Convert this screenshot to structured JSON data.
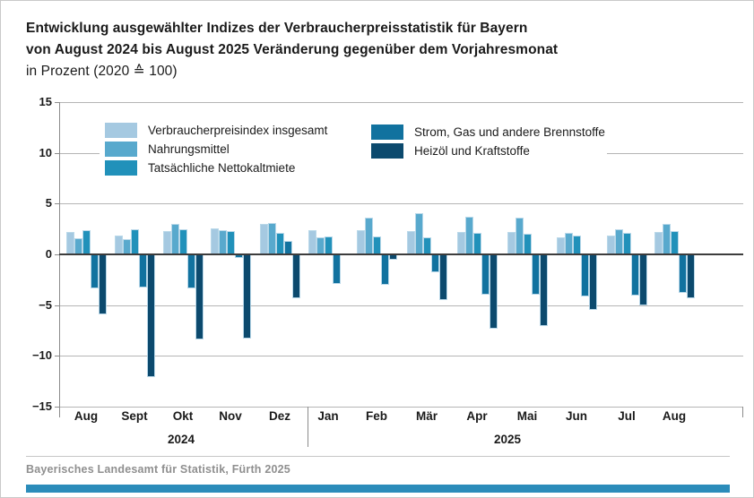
{
  "title": {
    "line1": "Entwicklung ausgewählter Indizes der Verbraucherpreisstatistik für Bayern",
    "line2": "von August 2024 bis August 2025 Veränderung gegenüber dem Vorjahresmonat",
    "line3": "in Prozent (2020 ≙ 100)"
  },
  "footer": {
    "source": "Bayerisches Landesamt für Statistik, Fürth 2025"
  },
  "chart_data": {
    "type": "bar",
    "title": "Entwicklung ausgewählter Indizes der Verbraucherpreisstatistik für Bayern von August 2024 bis August 2025, Veränderung gegenüber dem Vorjahresmonat in Prozent (2020 ≙ 100)",
    "categories": [
      "Aug",
      "Sept",
      "Okt",
      "Nov",
      "Dez",
      "Jan",
      "Feb",
      "Mär",
      "Apr",
      "Mai",
      "Jun",
      "Jul",
      "Aug"
    ],
    "year_groups": [
      {
        "label": "2024",
        "months": [
          "Aug",
          "Sept",
          "Okt",
          "Nov",
          "Dez"
        ]
      },
      {
        "label": "2025",
        "months": [
          "Jan",
          "Feb",
          "Mär",
          "Apr",
          "Mai",
          "Jun",
          "Jul",
          "Aug"
        ]
      }
    ],
    "series": [
      {
        "name": "Verbraucherpreisindex insgesamt",
        "color": "#a5c9e1",
        "values": [
          2.1,
          1.8,
          2.2,
          2.5,
          2.9,
          2.3,
          2.3,
          2.2,
          2.1,
          2.1,
          1.6,
          1.8,
          2.1
        ]
      },
      {
        "name": "Nahrungsmittel",
        "color": "#58a9cd",
        "values": [
          1.5,
          1.4,
          2.9,
          2.3,
          3.0,
          1.6,
          3.5,
          4.0,
          3.6,
          3.5,
          2.0,
          2.4,
          2.9
        ]
      },
      {
        "name": "Tatsächliche Nettokaltmiete",
        "color": "#2191ba",
        "values": [
          2.3,
          2.4,
          2.4,
          2.2,
          2.0,
          1.7,
          1.7,
          1.6,
          2.0,
          1.9,
          1.8,
          2.0,
          2.2
        ]
      },
      {
        "name": "Strom, Gas und andere Brennstoffe",
        "color": "#11729f",
        "values": [
          -3.3,
          -3.2,
          -3.3,
          -0.3,
          1.2,
          -2.8,
          -2.9,
          -1.7,
          -3.9,
          -3.9,
          -4.1,
          -4.0,
          -3.7
        ]
      },
      {
        "name": "Heizöl und Kraftstoffe",
        "color": "#0c4a6e",
        "values": [
          -5.8,
          -12.0,
          -8.3,
          -8.2,
          -4.2,
          0.0,
          -0.4,
          -4.4,
          -7.2,
          -7.0,
          -5.4,
          -4.9,
          -4.2
        ]
      }
    ],
    "ylim": [
      -15,
      15
    ],
    "yticks": [
      15,
      10,
      5,
      0,
      -5,
      -10,
      -15
    ],
    "grid": true,
    "legend_position": "top-inside",
    "unit": "Prozent"
  }
}
